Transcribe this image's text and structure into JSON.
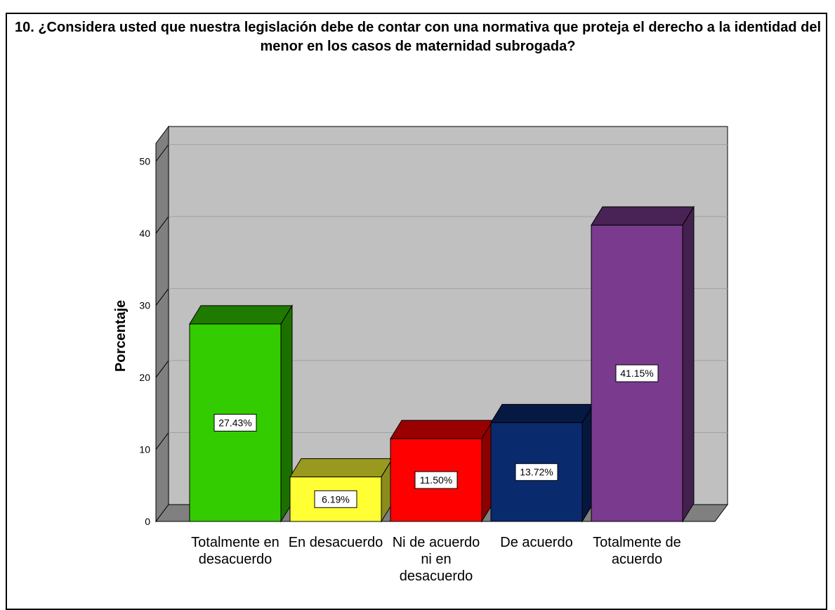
{
  "chart_data": {
    "type": "bar3d",
    "title": "10. ¿Considera usted que nuestra legislación debe de contar con una normativa que proteja el derecho a la identidad del menor en los casos de maternidad subrogada?",
    "y_label": "Porcentaje",
    "categories": [
      "Totalmente en desacuerdo",
      "En desacuerdo",
      "Ni de acuerdo ni en desacuerdo",
      "De acuerdo",
      "Totalmente de acuerdo"
    ],
    "values": [
      27.43,
      6.19,
      11.5,
      13.72,
      41.15
    ],
    "value_labels": [
      "27.43%",
      "6.19%",
      "11.50%",
      "13.72%",
      "41.15%"
    ],
    "colors": [
      "#33cc00",
      "#ffff33",
      "#ff0000",
      "#0a2a6e",
      "#7a3a8e"
    ],
    "ylim": [
      0,
      52.5
    ],
    "yticks": [
      0,
      10,
      20,
      30,
      40,
      50
    ],
    "grid": true
  }
}
